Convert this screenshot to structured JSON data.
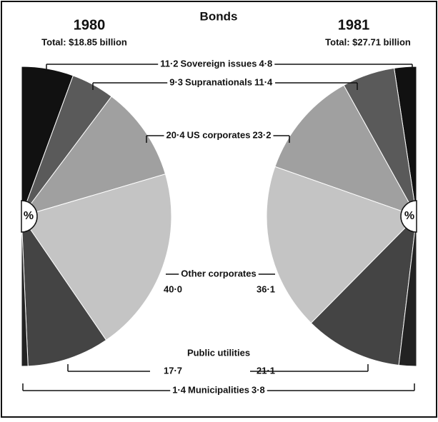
{
  "chart_data": {
    "type": "pie",
    "half": true,
    "title": "Bonds",
    "center_label": "%",
    "categories": [
      "Sovereign issues",
      "Supranationals",
      "US corporates",
      "Other corporates",
      "Public utilities",
      "Municipalities"
    ],
    "colors": [
      "#111111",
      "#5a5a5a",
      "#a0a0a0",
      "#c4c4c4",
      "#444444",
      "#222222"
    ],
    "series": [
      {
        "name": "1980",
        "subtitle": "Total: $18.85 billion",
        "values": [
          11.2,
          9.3,
          20.4,
          40.0,
          17.7,
          1.4
        ],
        "value_labels": [
          "11·2",
          "9·3",
          "20·4",
          "40·0",
          "17·7",
          "1·4"
        ]
      },
      {
        "name": "1981",
        "subtitle": "Total: $27.71 billion",
        "values": [
          4.8,
          11.4,
          23.2,
          36.1,
          21.1,
          3.8
        ],
        "value_labels": [
          "4·8",
          "11·4",
          "23·2",
          "36·1",
          "21·1",
          "3·8"
        ]
      }
    ]
  }
}
